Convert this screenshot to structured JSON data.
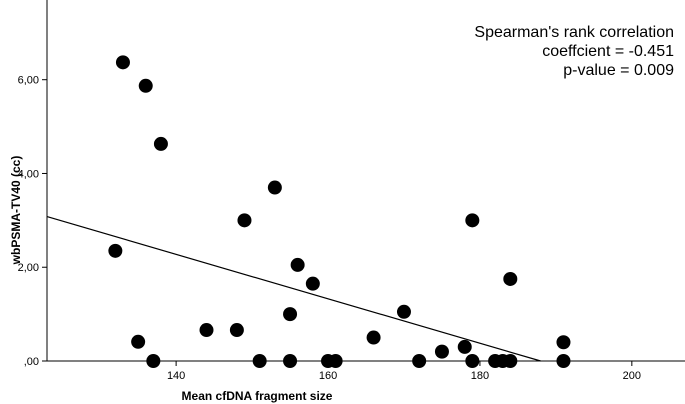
{
  "chart_data": {
    "type": "scatter",
    "xlabel": "Mean cfDNA fragment size",
    "ylabel": "wbPSMA-TV40 (cc)",
    "xlim": [
      123,
      207
    ],
    "ylim": [
      0,
      7.7
    ],
    "x_ticks": [
      {
        "value": 140,
        "label": "140"
      },
      {
        "value": 160,
        "label": "160"
      },
      {
        "value": 180,
        "label": "180"
      },
      {
        "value": 200,
        "label": "200"
      }
    ],
    "y_ticks": [
      {
        "value": 0,
        "label": ",00"
      },
      {
        "value": 2,
        "label": "2,00"
      },
      {
        "value": 4,
        "label": "4,00"
      },
      {
        "value": 6,
        "label": "6,00"
      }
    ],
    "grid": false,
    "annotation": [
      "Spearman's rank correlation",
      "coeffcient = -0.451",
      "p-value = 0.009"
    ],
    "points": [
      {
        "x": 132,
        "y": 2.35
      },
      {
        "x": 133,
        "y": 6.37
      },
      {
        "x": 135,
        "y": 0.41
      },
      {
        "x": 136,
        "y": 5.87
      },
      {
        "x": 137,
        "y": 0.0
      },
      {
        "x": 138,
        "y": 4.63
      },
      {
        "x": 144,
        "y": 0.66
      },
      {
        "x": 148,
        "y": 0.66
      },
      {
        "x": 149,
        "y": 3.0
      },
      {
        "x": 151,
        "y": 0.0
      },
      {
        "x": 153,
        "y": 3.7
      },
      {
        "x": 155,
        "y": 1.0
      },
      {
        "x": 155,
        "y": 0.0
      },
      {
        "x": 156,
        "y": 2.05
      },
      {
        "x": 158,
        "y": 1.65
      },
      {
        "x": 160,
        "y": 0.0
      },
      {
        "x": 161,
        "y": 0.0
      },
      {
        "x": 166,
        "y": 0.5
      },
      {
        "x": 170,
        "y": 1.05
      },
      {
        "x": 172,
        "y": 0.0
      },
      {
        "x": 175,
        "y": 0.2
      },
      {
        "x": 178,
        "y": 0.3
      },
      {
        "x": 179,
        "y": 3.0
      },
      {
        "x": 179,
        "y": 0.0
      },
      {
        "x": 182,
        "y": 0.0
      },
      {
        "x": 183,
        "y": 0.0
      },
      {
        "x": 184,
        "y": 1.75
      },
      {
        "x": 184,
        "y": 0.0
      },
      {
        "x": 191,
        "y": 0.4
      },
      {
        "x": 191,
        "y": 0.0
      }
    ],
    "fit_line": {
      "x": [
        123,
        188
      ],
      "y": [
        3.08,
        0.0
      ]
    }
  }
}
